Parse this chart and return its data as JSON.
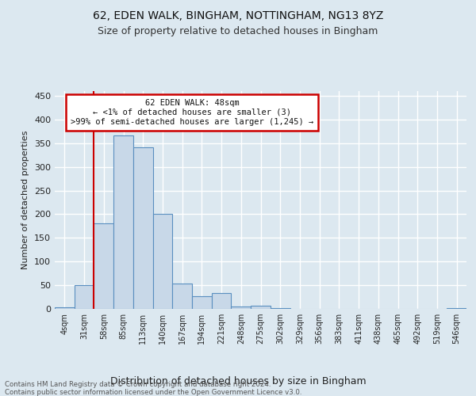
{
  "title_line1": "62, EDEN WALK, BINGHAM, NOTTINGHAM, NG13 8YZ",
  "title_line2": "Size of property relative to detached houses in Bingham",
  "xlabel": "Distribution of detached houses by size in Bingham",
  "ylabel": "Number of detached properties",
  "bin_labels": [
    "4sqm",
    "31sqm",
    "58sqm",
    "85sqm",
    "113sqm",
    "140sqm",
    "167sqm",
    "194sqm",
    "221sqm",
    "248sqm",
    "275sqm",
    "302sqm",
    "329sqm",
    "356sqm",
    "383sqm",
    "411sqm",
    "438sqm",
    "465sqm",
    "492sqm",
    "519sqm",
    "546sqm"
  ],
  "bar_heights": [
    3,
    50,
    180,
    367,
    341,
    200,
    54,
    26,
    34,
    5,
    7,
    2,
    0,
    0,
    0,
    0,
    0,
    0,
    0,
    0,
    2
  ],
  "bar_color": "#c8d8e8",
  "bar_edge_color": "#5a8fc0",
  "vline_x_idx": 2,
  "vline_color": "#cc0000",
  "annotation_text": "62 EDEN WALK: 48sqm\n← <1% of detached houses are smaller (3)\n>99% of semi-detached houses are larger (1,245) →",
  "annotation_box_color": "#ffffff",
  "annotation_box_edge": "#cc0000",
  "ylim": [
    0,
    460
  ],
  "yticks": [
    0,
    50,
    100,
    150,
    200,
    250,
    300,
    350,
    400,
    450
  ],
  "background_color": "#dce8f0",
  "grid_color": "#ffffff",
  "footer_line1": "Contains HM Land Registry data © Crown copyright and database right 2024.",
  "footer_line2": "Contains public sector information licensed under the Open Government Licence v3.0."
}
